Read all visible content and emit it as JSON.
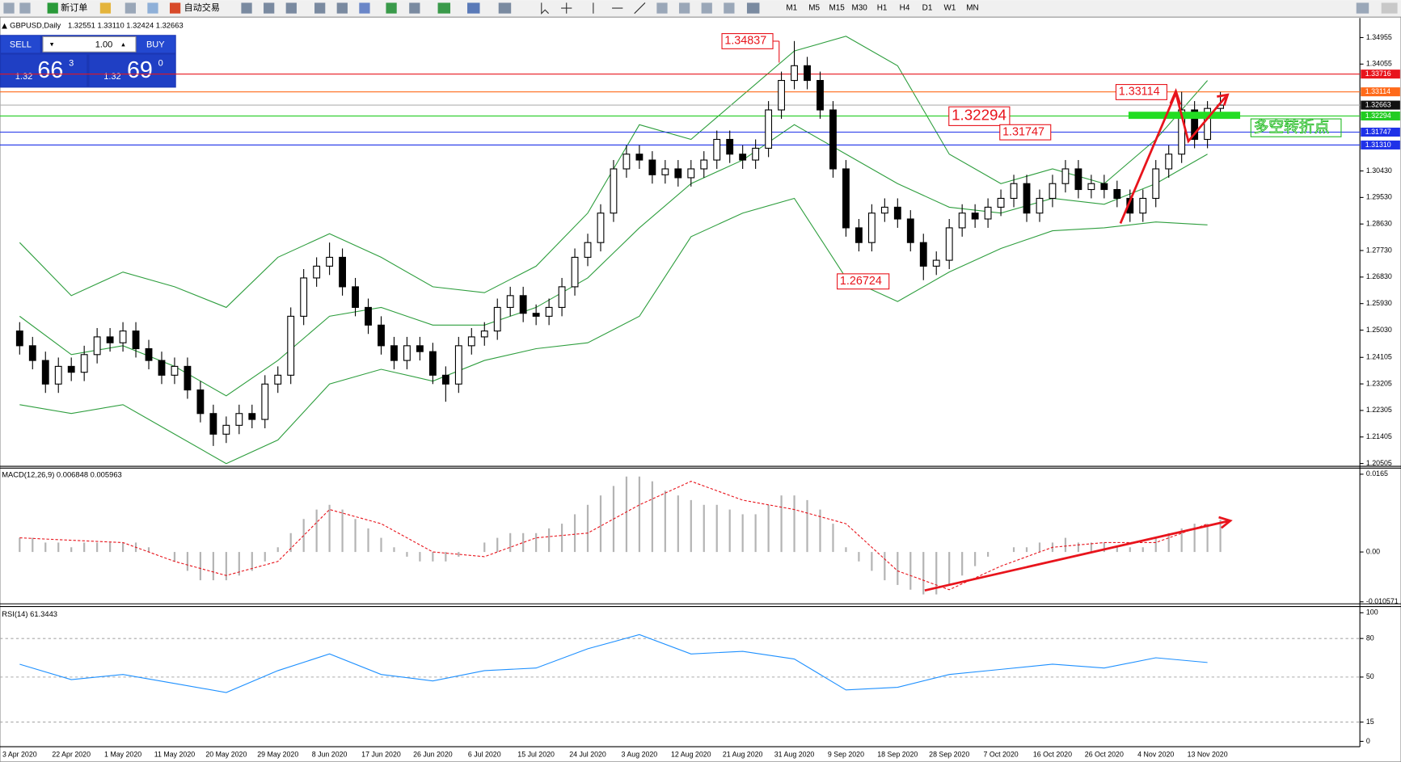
{
  "ui": {
    "toolbar": [
      "新订单",
      "自动交易"
    ],
    "timeframes": [
      "M1",
      "M5",
      "M15",
      "M30",
      "H1",
      "H4",
      "D1",
      "W1",
      "MN"
    ],
    "trade": {
      "sell": "SELL",
      "buy": "BUY",
      "lot": "1.00",
      "sell_big": "1.32",
      "sell_pips": "66",
      "sell_frac": "3",
      "buy_big": "1.32",
      "buy_pips": "69",
      "buy_frac": "0"
    }
  },
  "chart_data": [
    {
      "type": "candlestick",
      "title": "GBPUSD,Daily",
      "subtitle": "1.32551 1.33110 1.32424 1.32663",
      "categories": [
        "3 Apr 2020",
        null,
        null,
        null,
        "22 Apr 2020",
        null,
        null,
        null,
        "1 May 2020",
        null,
        null,
        null,
        "11 May 2020",
        null,
        null,
        null,
        "20 May 2020",
        null,
        null,
        null,
        "29 May 2020",
        null,
        null,
        null,
        "8 Jun 2020",
        null,
        null,
        null,
        "17 Jun 2020",
        null,
        null,
        null,
        "26 Jun 2020",
        null,
        null,
        null,
        "6 Jul 2020",
        null,
        null,
        null,
        "15 Jul 2020",
        null,
        null,
        null,
        "24 Jul 2020",
        null,
        null,
        null,
        "3 Aug 2020",
        null,
        null,
        null,
        "12 Aug 2020",
        null,
        null,
        null,
        "21 Aug 2020",
        null,
        null,
        null,
        "31 Aug 2020",
        null,
        null,
        null,
        "9 Sep 2020",
        null,
        null,
        null,
        "18 Sep 2020",
        null,
        null,
        null,
        "28 Sep 2020",
        null,
        null,
        null,
        "7 Oct 2020",
        null,
        null,
        null,
        "16 Oct 2020",
        null,
        null,
        null,
        "26 Oct 2020",
        null,
        null,
        null,
        "4 Nov 2020",
        null,
        null,
        null,
        "13 Nov 2020",
        null
      ],
      "ohlc": [
        [
          1.25,
          1.253,
          1.242,
          1.245
        ],
        [
          1.245,
          1.248,
          1.237,
          1.24
        ],
        [
          1.24,
          1.243,
          1.229,
          1.232
        ],
        [
          1.232,
          1.241,
          1.229,
          1.238
        ],
        [
          1.238,
          1.241,
          1.233,
          1.236
        ],
        [
          1.236,
          1.245,
          1.233,
          1.242
        ],
        [
          1.242,
          1.251,
          1.239,
          1.248
        ],
        [
          1.248,
          1.251,
          1.243,
          1.246
        ],
        [
          1.246,
          1.253,
          1.243,
          1.25
        ],
        [
          1.25,
          1.253,
          1.241,
          1.244
        ],
        [
          1.244,
          1.247,
          1.237,
          1.24
        ],
        [
          1.24,
          1.243,
          1.232,
          1.235
        ],
        [
          1.235,
          1.241,
          1.232,
          1.238
        ],
        [
          1.238,
          1.241,
          1.227,
          1.23
        ],
        [
          1.23,
          1.233,
          1.219,
          1.222
        ],
        [
          1.222,
          1.225,
          1.211,
          1.215
        ],
        [
          1.215,
          1.221,
          1.212,
          1.218
        ],
        [
          1.218,
          1.225,
          1.215,
          1.222
        ],
        [
          1.222,
          1.225,
          1.217,
          1.22
        ],
        [
          1.22,
          1.235,
          1.217,
          1.232
        ],
        [
          1.232,
          1.238,
          1.229,
          1.235
        ],
        [
          1.235,
          1.258,
          1.232,
          1.255
        ],
        [
          1.255,
          1.271,
          1.252,
          1.268
        ],
        [
          1.268,
          1.275,
          1.265,
          1.272
        ],
        [
          1.272,
          1.28,
          1.269,
          1.275
        ],
        [
          1.275,
          1.278,
          1.262,
          1.265
        ],
        [
          1.265,
          1.268,
          1.255,
          1.258
        ],
        [
          1.258,
          1.261,
          1.249,
          1.252
        ],
        [
          1.252,
          1.255,
          1.242,
          1.245
        ],
        [
          1.245,
          1.248,
          1.237,
          1.24
        ],
        [
          1.24,
          1.248,
          1.237,
          1.245
        ],
        [
          1.245,
          1.248,
          1.24,
          1.243
        ],
        [
          1.243,
          1.246,
          1.232,
          1.235
        ],
        [
          1.235,
          1.238,
          1.226,
          1.232
        ],
        [
          1.232,
          1.248,
          1.229,
          1.245
        ],
        [
          1.245,
          1.251,
          1.242,
          1.248
        ],
        [
          1.248,
          1.253,
          1.245,
          1.25
        ],
        [
          1.25,
          1.261,
          1.247,
          1.258
        ],
        [
          1.258,
          1.265,
          1.255,
          1.262
        ],
        [
          1.262,
          1.265,
          1.253,
          1.256
        ],
        [
          1.256,
          1.259,
          1.252,
          1.255
        ],
        [
          1.255,
          1.261,
          1.252,
          1.258
        ],
        [
          1.258,
          1.268,
          1.255,
          1.265
        ],
        [
          1.265,
          1.278,
          1.262,
          1.275
        ],
        [
          1.275,
          1.283,
          1.272,
          1.28
        ],
        [
          1.28,
          1.293,
          1.277,
          1.29
        ],
        [
          1.29,
          1.308,
          1.287,
          1.305
        ],
        [
          1.305,
          1.313,
          1.302,
          1.31
        ],
        [
          1.31,
          1.313,
          1.305,
          1.308
        ],
        [
          1.308,
          1.311,
          1.3,
          1.303
        ],
        [
          1.303,
          1.308,
          1.3,
          1.305
        ],
        [
          1.305,
          1.308,
          1.299,
          1.302
        ],
        [
          1.302,
          1.308,
          1.299,
          1.305
        ],
        [
          1.305,
          1.311,
          1.302,
          1.308
        ],
        [
          1.308,
          1.318,
          1.305,
          1.315
        ],
        [
          1.315,
          1.318,
          1.307,
          1.31
        ],
        [
          1.31,
          1.313,
          1.305,
          1.308
        ],
        [
          1.308,
          1.315,
          1.305,
          1.312
        ],
        [
          1.312,
          1.328,
          1.309,
          1.325
        ],
        [
          1.325,
          1.338,
          1.322,
          1.335
        ],
        [
          1.335,
          1.34837,
          1.332,
          1.34
        ],
        [
          1.34,
          1.343,
          1.332,
          1.335
        ],
        [
          1.335,
          1.338,
          1.322,
          1.325
        ],
        [
          1.325,
          1.328,
          1.302,
          1.305
        ],
        [
          1.305,
          1.308,
          1.282,
          1.285
        ],
        [
          1.285,
          1.288,
          1.277,
          1.28
        ],
        [
          1.28,
          1.293,
          1.277,
          1.29
        ],
        [
          1.29,
          1.295,
          1.287,
          1.292
        ],
        [
          1.292,
          1.295,
          1.285,
          1.288
        ],
        [
          1.288,
          1.291,
          1.277,
          1.28
        ],
        [
          1.28,
          1.283,
          1.26724,
          1.272
        ],
        [
          1.272,
          1.277,
          1.269,
          1.274
        ],
        [
          1.274,
          1.288,
          1.271,
          1.285
        ],
        [
          1.285,
          1.293,
          1.282,
          1.29
        ],
        [
          1.29,
          1.293,
          1.285,
          1.288
        ],
        [
          1.288,
          1.295,
          1.285,
          1.292
        ],
        [
          1.292,
          1.298,
          1.289,
          1.295
        ],
        [
          1.295,
          1.303,
          1.292,
          1.3
        ],
        [
          1.3,
          1.303,
          1.287,
          1.29
        ],
        [
          1.29,
          1.298,
          1.287,
          1.295
        ],
        [
          1.295,
          1.303,
          1.292,
          1.3
        ],
        [
          1.3,
          1.308,
          1.297,
          1.305
        ],
        [
          1.305,
          1.308,
          1.295,
          1.298
        ],
        [
          1.298,
          1.303,
          1.295,
          1.3
        ],
        [
          1.3,
          1.303,
          1.295,
          1.298
        ],
        [
          1.298,
          1.301,
          1.292,
          1.295
        ],
        [
          1.295,
          1.298,
          1.287,
          1.29
        ],
        [
          1.29,
          1.298,
          1.287,
          1.295
        ],
        [
          1.295,
          1.308,
          1.292,
          1.305
        ],
        [
          1.305,
          1.313,
          1.302,
          1.31
        ],
        [
          1.31,
          1.33114,
          1.307,
          1.325
        ],
        [
          1.325,
          1.328,
          1.312,
          1.315
        ],
        [
          1.315,
          1.328,
          1.312,
          1.32551
        ],
        [
          1.32551,
          1.3311,
          1.32424,
          1.32663
        ]
      ],
      "bands": {
        "color": "#2e9e3e",
        "x": [
          "3 Apr 2020",
          "22 Apr 2020",
          "1 May 2020",
          "11 May 2020",
          "20 May 2020",
          "29 May 2020",
          "8 Jun 2020",
          "17 Jun 2020",
          "26 Jun 2020",
          "6 Jul 2020",
          "15 Jul 2020",
          "24 Jul 2020",
          "3 Aug 2020",
          "12 Aug 2020",
          "21 Aug 2020",
          "31 Aug 2020",
          "9 Sep 2020",
          "18 Sep 2020",
          "28 Sep 2020",
          "7 Oct 2020",
          "16 Oct 2020",
          "26 Oct 2020",
          "4 Nov 2020",
          "13 Nov 2020"
        ],
        "upper": [
          1.28,
          1.262,
          1.27,
          1.265,
          1.258,
          1.275,
          1.283,
          1.275,
          1.265,
          1.263,
          1.272,
          1.29,
          1.32,
          1.315,
          1.33,
          1.345,
          1.35,
          1.34,
          1.31,
          1.3,
          1.305,
          1.3,
          1.315,
          1.335
        ],
        "middle": [
          1.255,
          1.242,
          1.245,
          1.238,
          1.228,
          1.24,
          1.255,
          1.258,
          1.252,
          1.252,
          1.258,
          1.268,
          1.285,
          1.3,
          1.308,
          1.32,
          1.31,
          1.3,
          1.292,
          1.29,
          1.295,
          1.293,
          1.3,
          1.31
        ],
        "lower": [
          1.225,
          1.222,
          1.225,
          1.215,
          1.205,
          1.213,
          1.232,
          1.237,
          1.233,
          1.24,
          1.244,
          1.246,
          1.255,
          1.282,
          1.29,
          1.295,
          1.268,
          1.26,
          1.27,
          1.278,
          1.284,
          1.285,
          1.287,
          1.286
        ]
      },
      "levels": [
        {
          "value": 1.33716,
          "color": "#e8141c"
        },
        {
          "value": 1.33114,
          "color": "#ff6a1a"
        },
        {
          "value": 1.32663,
          "color": "#111111"
        },
        {
          "value": 1.32294,
          "color": "#22cc22"
        },
        {
          "value": 1.31747,
          "color": "#1f32e8"
        },
        {
          "value": {
            "value": 1.3131,
            "label": "1.31310"
          },
          "color": "#1f32e8"
        }
      ],
      "annotations": [
        "多空转折点"
      ],
      "ylim": [
        1.2041,
        1.3562
      ],
      "yticks": [
        1.34955,
        1.34055,
        {
          "value": 1.3043,
          "label": "1.30430"
        },
        {
          "value": 1.2953,
          "label": "1.29530"
        },
        {
          "value": 1.2863,
          "label": "1.28630"
        },
        {
          "value": 1.2773,
          "label": "1.27730"
        },
        {
          "value": 1.2683,
          "label": "1.26830"
        },
        {
          "value": 1.2593,
          "label": "1.25930"
        },
        {
          "value": 1.2503,
          "label": "1.25030"
        },
        1.24105,
        1.23205,
        1.22305,
        1.21405,
        1.20505
      ]
    },
    {
      "type": "macd",
      "title": "MACD(12,26,9) 0.006848 0.005963",
      "color": "#b4b4b4",
      "values": [
        0.003,
        0.003,
        0.002,
        0.002,
        0.001,
        0.002,
        0.002,
        0.002,
        0.002,
        0.002,
        0.001,
        0.0,
        -0.002,
        -0.004,
        -0.006,
        -0.006,
        -0.006,
        -0.005,
        -0.004,
        -0.002,
        0.001,
        0.004,
        0.007,
        0.009,
        0.01,
        0.009,
        0.007,
        0.005,
        0.003,
        0.001,
        -0.001,
        -0.002,
        -0.002,
        -0.002,
        -0.001,
        0.0,
        0.002,
        0.003,
        0.004,
        0.004,
        0.004,
        0.005,
        0.006,
        0.008,
        0.01,
        0.012,
        0.014,
        0.016,
        0.016,
        0.015,
        0.013,
        0.012,
        0.011,
        0.01,
        0.01,
        0.009,
        0.008,
        0.008,
        0.01,
        0.012,
        0.012,
        0.011,
        0.009,
        0.006,
        0.001,
        -0.002,
        -0.004,
        -0.006,
        -0.007,
        -0.008,
        -0.009,
        -0.009,
        -0.007,
        -0.005,
        -0.003,
        -0.001,
        0.0,
        0.001,
        0.001,
        0.002,
        0.002,
        0.003,
        0.002,
        0.002,
        0.002,
        0.001,
        0.001,
        0.001,
        0.003,
        0.004,
        0.005,
        0.006,
        0.006,
        0.006848
      ],
      "signal": {
        "color": "#e8141c",
        "x": [
          "3 Apr 2020",
          "22 Apr 2020",
          "1 May 2020",
          "11 May 2020",
          "20 May 2020",
          "29 May 2020",
          "8 Jun 2020",
          "17 Jun 2020",
          "26 Jun 2020",
          "6 Jul 2020",
          "15 Jul 2020",
          "24 Jul 2020",
          "3 Aug 2020",
          "12 Aug 2020",
          "21 Aug 2020",
          "31 Aug 2020",
          "9 Sep 2020",
          "18 Sep 2020",
          "28 Sep 2020",
          "7 Oct 2020",
          "16 Oct 2020",
          "26 Oct 2020",
          "4 Nov 2020",
          "13 Nov 2020"
        ],
        "values": [
          0.003,
          0.0025,
          0.002,
          -0.002,
          -0.005,
          -0.002,
          0.009,
          0.006,
          0.0,
          -0.001,
          0.003,
          0.004,
          0.01,
          0.015,
          0.011,
          0.009,
          0.006,
          -0.004,
          -0.008,
          -0.003,
          0.001,
          0.002,
          0.002,
          0.005963
        ]
      },
      "ylim": [
        -0.011,
        0.0178
      ],
      "yticks": [
        0.0165,
        {
          "value": 0,
          "label": "0.00"
        },
        -0.010571
      ]
    },
    {
      "type": "line",
      "title": "RSI(14) 61.3443",
      "color": "#1e90ff",
      "x": [
        "3 Apr 2020",
        "22 Apr 2020",
        "1 May 2020",
        "11 May 2020",
        "20 May 2020",
        "29 May 2020",
        "8 Jun 2020",
        "17 Jun 2020",
        "26 Jun 2020",
        "6 Jul 2020",
        "15 Jul 2020",
        "24 Jul 2020",
        "3 Aug 2020",
        "12 Aug 2020",
        "21 Aug 2020",
        "31 Aug 2020",
        "9 Sep 2020",
        "18 Sep 2020",
        "28 Sep 2020",
        "7 Oct 2020",
        "16 Oct 2020",
        "26 Oct 2020",
        "4 Nov 2020",
        "13 Nov 2020"
      ],
      "values": [
        60,
        48,
        52,
        45,
        38,
        55,
        68,
        52,
        47,
        55,
        57,
        72,
        83,
        68,
        70,
        64,
        40,
        42,
        52,
        56,
        60,
        57,
        65,
        61.3443
      ],
      "ylim": [
        0,
        100
      ],
      "yticks": [
        100,
        80,
        50,
        15,
        0
      ],
      "grid": true
    }
  ]
}
